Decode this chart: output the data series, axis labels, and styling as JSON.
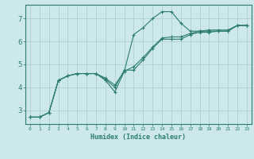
{
  "xlabel": "Humidex (Indice chaleur)",
  "bg_color": "#cce8ea",
  "grid_color": "#b0d0d4",
  "line_color": "#2d7d6e",
  "xlim": [
    -0.5,
    23.5
  ],
  "ylim": [
    2.4,
    7.6
  ],
  "xticks": [
    0,
    1,
    2,
    3,
    4,
    5,
    6,
    7,
    8,
    9,
    10,
    11,
    12,
    13,
    14,
    15,
    16,
    17,
    18,
    19,
    20,
    21,
    22,
    23
  ],
  "yticks": [
    3,
    4,
    5,
    6,
    7
  ],
  "line1_x": [
    0,
    1,
    2,
    3,
    4,
    5,
    6,
    7,
    8,
    9,
    10,
    11,
    12,
    13,
    14,
    15,
    16,
    17,
    18,
    19,
    20,
    21,
    22,
    23
  ],
  "line1_y": [
    2.7,
    2.7,
    2.9,
    4.3,
    4.5,
    4.6,
    4.6,
    4.6,
    4.3,
    3.8,
    4.7,
    6.3,
    6.6,
    7.0,
    7.3,
    7.3,
    6.8,
    6.45,
    6.45,
    6.45,
    6.45,
    6.45,
    6.7,
    6.7
  ],
  "line2_x": [
    0,
    1,
    2,
    3,
    4,
    5,
    6,
    7,
    8,
    9,
    10,
    11,
    12,
    13,
    14,
    15,
    16,
    17,
    18,
    19,
    20,
    21,
    22,
    23
  ],
  "line2_y": [
    2.7,
    2.7,
    2.9,
    4.3,
    4.5,
    4.6,
    4.6,
    4.6,
    4.35,
    4.0,
    4.75,
    4.75,
    5.2,
    5.7,
    6.1,
    6.1,
    6.1,
    6.3,
    6.4,
    6.4,
    6.45,
    6.45,
    6.7,
    6.7
  ],
  "line3_x": [
    0,
    1,
    2,
    3,
    4,
    5,
    6,
    7,
    8,
    9,
    10,
    11,
    12,
    13,
    14,
    15,
    16,
    17,
    18,
    19,
    20,
    21,
    22,
    23
  ],
  "line3_y": [
    2.7,
    2.7,
    2.9,
    4.3,
    4.5,
    4.6,
    4.6,
    4.6,
    4.4,
    4.1,
    4.7,
    4.9,
    5.3,
    5.75,
    6.15,
    6.2,
    6.2,
    6.35,
    6.45,
    6.5,
    6.5,
    6.5,
    6.7,
    6.7
  ]
}
